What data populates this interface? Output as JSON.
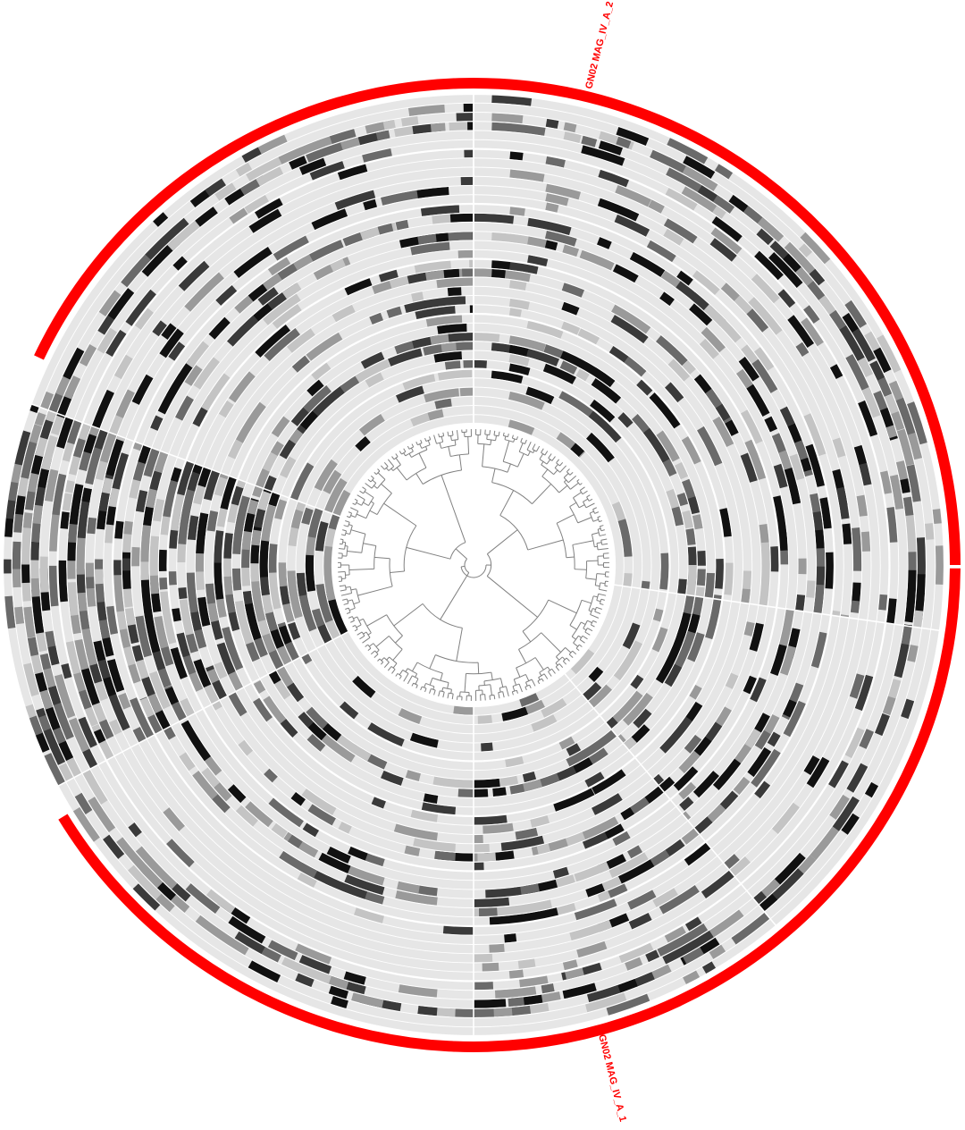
{
  "colors": {
    "background": "#ffffff",
    "ring_background": "#e6e6e6",
    "separator": "#ffffff",
    "bin": "#ff0000",
    "bin_label": "#ff0000",
    "tree": "#808080",
    "coverage_scale": [
      "#e6e6e6",
      "#c4c4c4",
      "#9a9a9a",
      "#6a6a6a",
      "#3a3a3a",
      "#111111"
    ]
  },
  "bins": [
    {
      "label": "GN02 MAG_IV_A_2"
    },
    {
      "label": "GN02 MAG_IV_A_1"
    }
  ],
  "layers": {
    "count": 36
  },
  "sectors": {
    "boundaries_deg": [
      -90,
      8,
      50,
      90,
      152,
      200,
      270
    ],
    "densities": [
      0.18,
      0.16,
      0.22,
      0.14,
      0.6,
      0.18
    ]
  },
  "tree": {
    "leaf_count": 180
  }
}
